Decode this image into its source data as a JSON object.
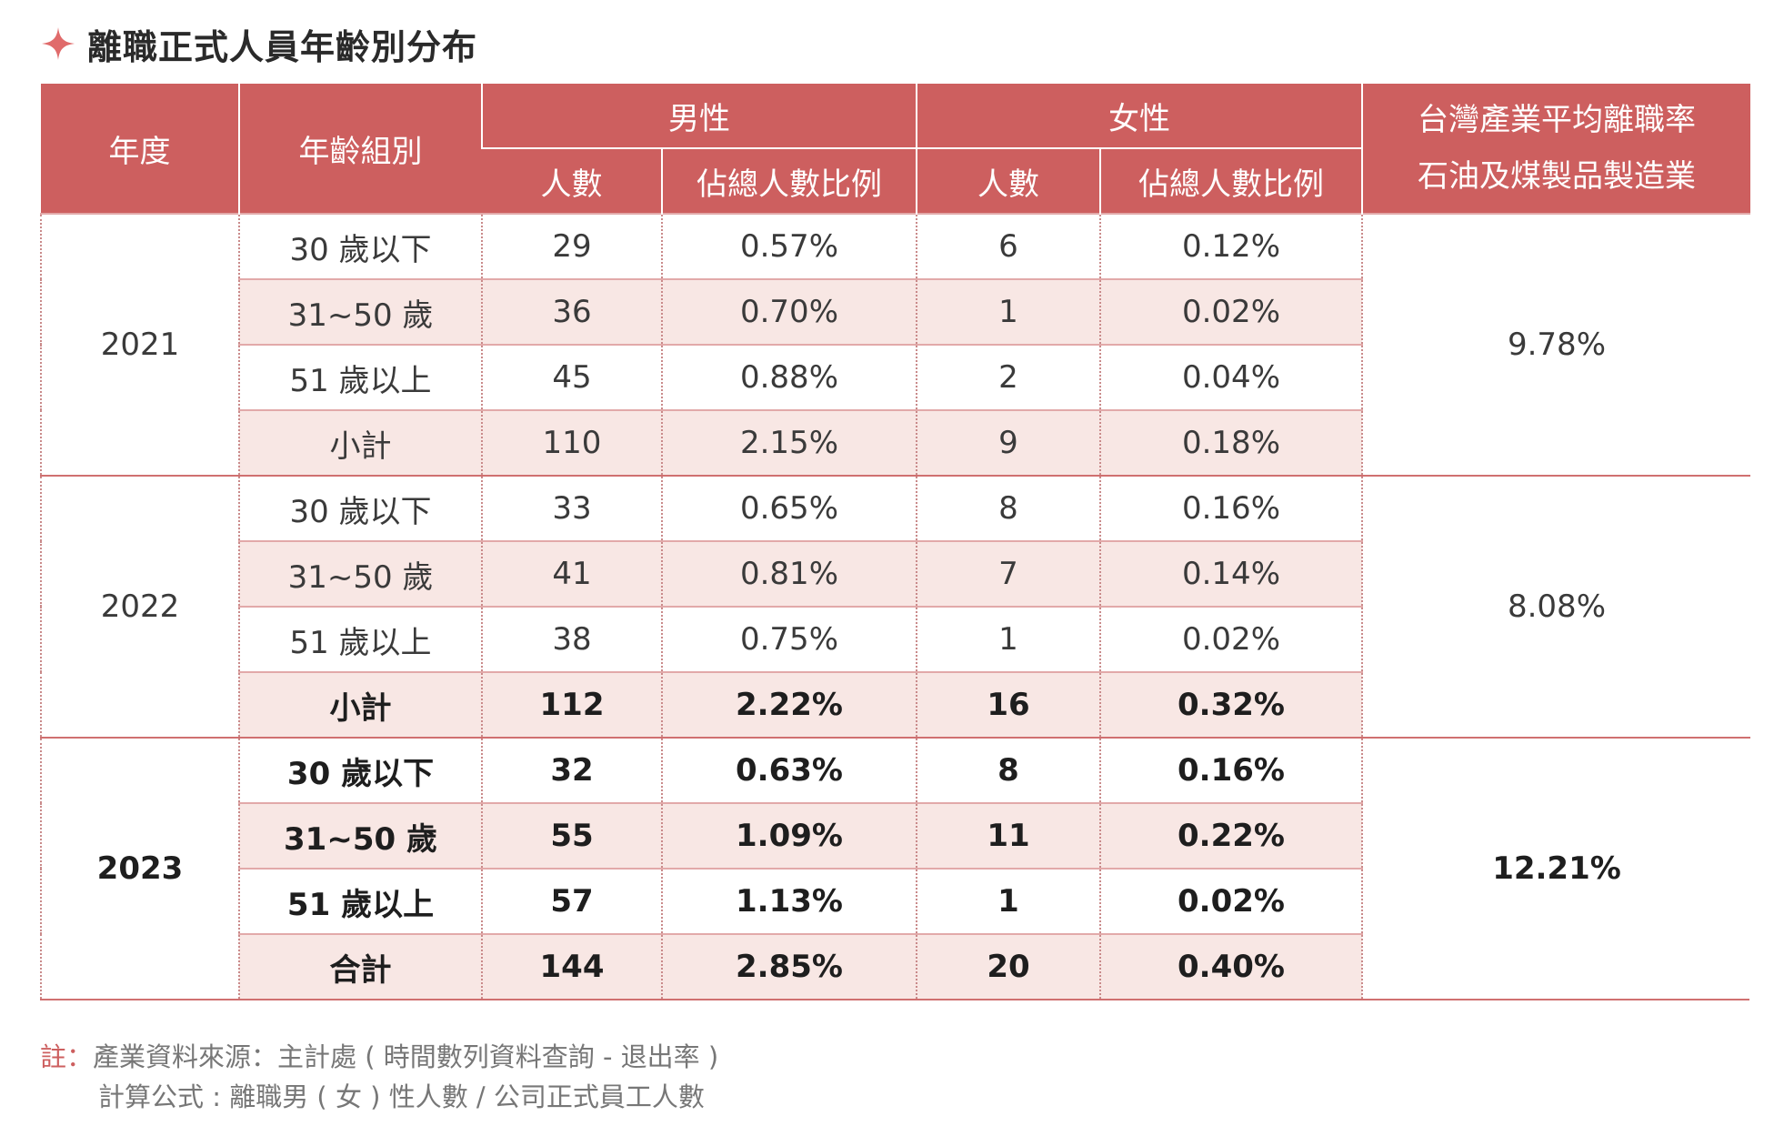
{
  "title": "離職正式人員年齡別分布",
  "colors": {
    "header_bg": "#cd5f5f",
    "shade_bg": "#f8e7e4",
    "accent": "#cd5f5f"
  },
  "headers": {
    "year": "年度",
    "age_group": "年齡組別",
    "male": "男性",
    "female": "女性",
    "count": "人數",
    "ratio": "佔總人數比例",
    "rate_line1": "台灣產業平均離職率",
    "rate_line2": "石油及煤製品製造業"
  },
  "years": [
    {
      "year": "2021",
      "rate": "9.78%",
      "rows": [
        {
          "group": "30 歲以下",
          "male_count": "29",
          "male_ratio": "0.57%",
          "female_count": "6",
          "female_ratio": "0.12%"
        },
        {
          "group": "31~50 歲",
          "male_count": "36",
          "male_ratio": "0.70%",
          "female_count": "1",
          "female_ratio": "0.02%"
        },
        {
          "group": "51 歲以上",
          "male_count": "45",
          "male_ratio": "0.88%",
          "female_count": "2",
          "female_ratio": "0.04%"
        },
        {
          "group": "小計",
          "male_count": "110",
          "male_ratio": "2.15%",
          "female_count": "9",
          "female_ratio": "0.18%"
        }
      ]
    },
    {
      "year": "2022",
      "rate": "8.08%",
      "rows": [
        {
          "group": "30 歲以下",
          "male_count": "33",
          "male_ratio": "0.65%",
          "female_count": "8",
          "female_ratio": "0.16%"
        },
        {
          "group": "31~50 歲",
          "male_count": "41",
          "male_ratio": "0.81%",
          "female_count": "7",
          "female_ratio": "0.14%"
        },
        {
          "group": "51 歲以上",
          "male_count": "38",
          "male_ratio": "0.75%",
          "female_count": "1",
          "female_ratio": "0.02%"
        },
        {
          "group": "小計",
          "male_count": "112",
          "male_ratio": "2.22%",
          "female_count": "16",
          "female_ratio": "0.32%"
        }
      ]
    },
    {
      "year": "2023",
      "rate": "12.21%",
      "rows": [
        {
          "group": "30 歲以下",
          "male_count": "32",
          "male_ratio": "0.63%",
          "female_count": "8",
          "female_ratio": "0.16%"
        },
        {
          "group": "31~50 歲",
          "male_count": "55",
          "male_ratio": "1.09%",
          "female_count": "11",
          "female_ratio": "0.22%"
        },
        {
          "group": "51 歲以上",
          "male_count": "57",
          "male_ratio": "1.13%",
          "female_count": "1",
          "female_ratio": "0.02%"
        },
        {
          "group": "合計",
          "male_count": "144",
          "male_ratio": "2.85%",
          "female_count": "20",
          "female_ratio": "0.40%"
        }
      ]
    }
  ],
  "note": {
    "label": "註：",
    "line1": "產業資料來源：主計處 ( 時間數列資料查詢 - 退出率 )",
    "line2": "計算公式 : 離職男 ( 女 ) 性人數 / 公司正式員工人數"
  }
}
